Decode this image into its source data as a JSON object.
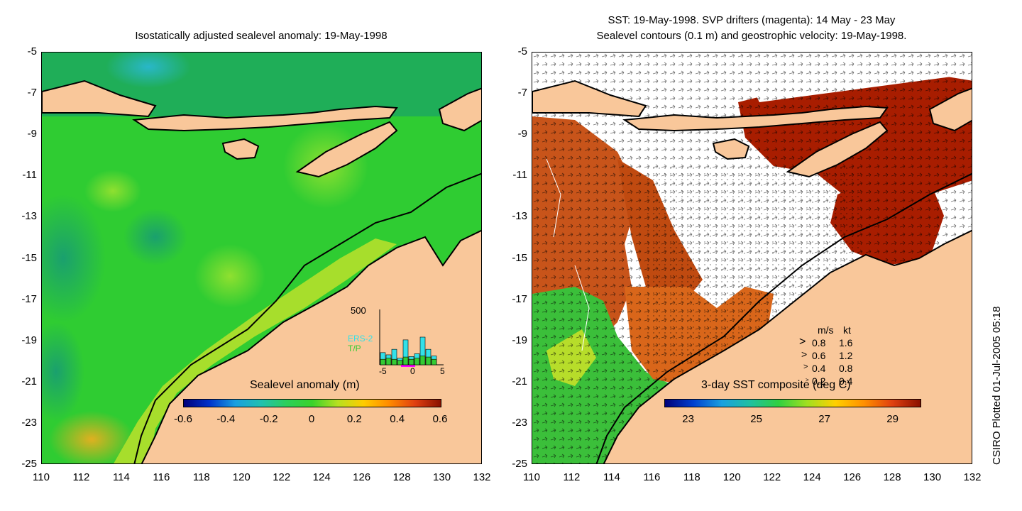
{
  "left_panel": {
    "title": "Isostatically adjusted sealevel anomaly: 19-May-1998",
    "colorbar": {
      "label": "Sealevel anomaly (m)",
      "ticks": [
        "-0.6",
        "-0.4",
        "-0.2",
        "0",
        "0.2",
        "0.4",
        "0.6"
      ]
    },
    "inset": {
      "ymax_label": "500",
      "series1": "ERS-2",
      "series2": "T/P",
      "xticks": [
        "-5",
        "0",
        "5"
      ],
      "colors": {
        "ers2": "#33e0e8",
        "tp": "#33cc33",
        "window": "#ff00ff"
      },
      "bars_ers2": [
        0.22,
        0.18,
        0.28,
        0.12,
        0.45,
        0.15,
        0.2,
        0.5,
        0.28,
        0.16
      ],
      "bars_tp": [
        0.1,
        0.12,
        0.1,
        0.08,
        0.14,
        0.1,
        0.12,
        0.16,
        0.14,
        0.1
      ]
    }
  },
  "right_panel": {
    "title_line1": "SST: 19-May-1998. SVP drifters (magenta): 14 May - 23 May",
    "title_line2": "Sealevel contours (0.1 m) and geostrophic velocity: 19-May-1998.",
    "colorbar": {
      "label": "3-day SST composite (deg C)",
      "ticks": [
        "23",
        "25",
        "27",
        "29"
      ]
    },
    "velocity_legend": {
      "header_ms": "m/s",
      "header_kt": "kt",
      "rows": [
        {
          "ms": "0.8",
          "kt": "1.6"
        },
        {
          "ms": "0.6",
          "kt": "1.2"
        },
        {
          "ms": "0.4",
          "kt": "0.8"
        },
        {
          "ms": "0.2",
          "kt": "0.4"
        }
      ]
    }
  },
  "axes": {
    "y_ticks": [
      "-5",
      "-7",
      "-9",
      "-11",
      "-13",
      "-15",
      "-17",
      "-19",
      "-21",
      "-23",
      "-25"
    ],
    "x_ticks": [
      "110",
      "112",
      "114",
      "116",
      "118",
      "120",
      "122",
      "124",
      "126",
      "128",
      "130",
      "132"
    ]
  },
  "credit": "CSIRO Plotted 01-Jul-2005 05:18",
  "colors": {
    "ocean_green": "#2ed12e",
    "ocean_deep": "#17b86a",
    "land": "#f9c79a",
    "sst_red": "#a81d00",
    "sst_orange": "#d9661a"
  }
}
